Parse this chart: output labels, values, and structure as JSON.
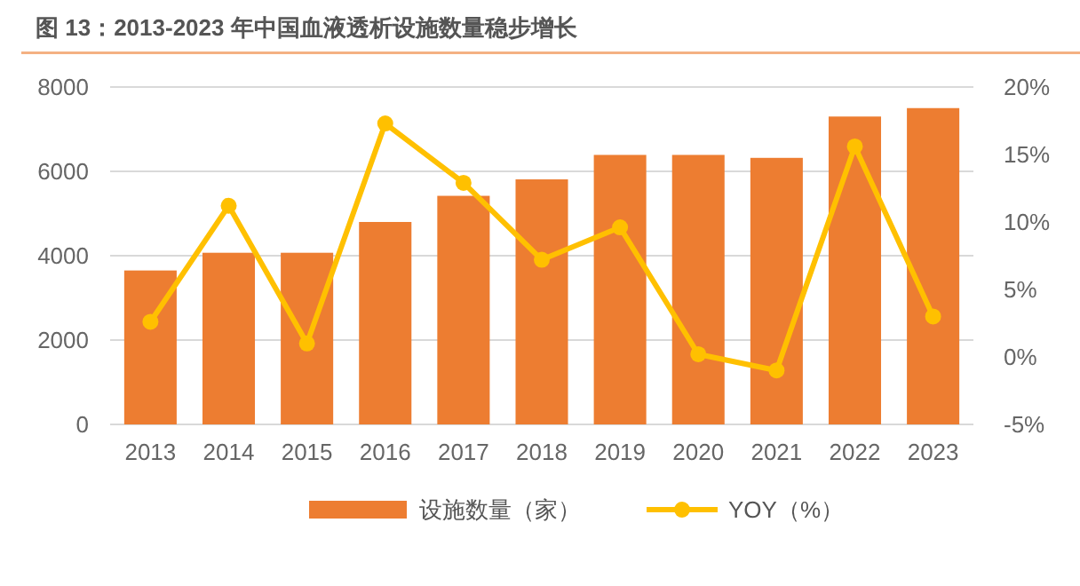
{
  "chart_data": {
    "type": "bar",
    "title": "图 13：2013-2023 年中国血液透析设施数量稳步增长",
    "categories": [
      "2013",
      "2014",
      "2015",
      "2016",
      "2017",
      "2018",
      "2019",
      "2020",
      "2021",
      "2022",
      "2023"
    ],
    "series": [
      {
        "name": "设施数量（家）",
        "color": "#ed7d31",
        "values": [
          3650,
          4070,
          4070,
          4800,
          5420,
          5810,
          6390,
          6390,
          6320,
          7300,
          7500
        ]
      },
      {
        "name": "YOY（%）",
        "type": "line",
        "axis": "y2",
        "color": "#ffc000",
        "marker": "circle",
        "values": [
          2.6,
          11.2,
          1.0,
          17.3,
          12.9,
          7.2,
          9.6,
          0.2,
          -1.0,
          15.6,
          3.0
        ]
      }
    ],
    "ylim": [
      0,
      8000
    ],
    "yticks": [
      0,
      2000,
      4000,
      6000,
      8000
    ],
    "y2lim": [
      -5,
      20
    ],
    "y2ticks": [
      {
        "value": -5,
        "label": "-5%"
      },
      {
        "value": 0,
        "label": "0%"
      },
      {
        "value": 5,
        "label": "5%"
      },
      {
        "value": 10,
        "label": "10%"
      },
      {
        "value": 15,
        "label": "15%"
      },
      {
        "value": 20,
        "label": "20%"
      }
    ],
    "grid": "y",
    "legend": "bottom"
  }
}
